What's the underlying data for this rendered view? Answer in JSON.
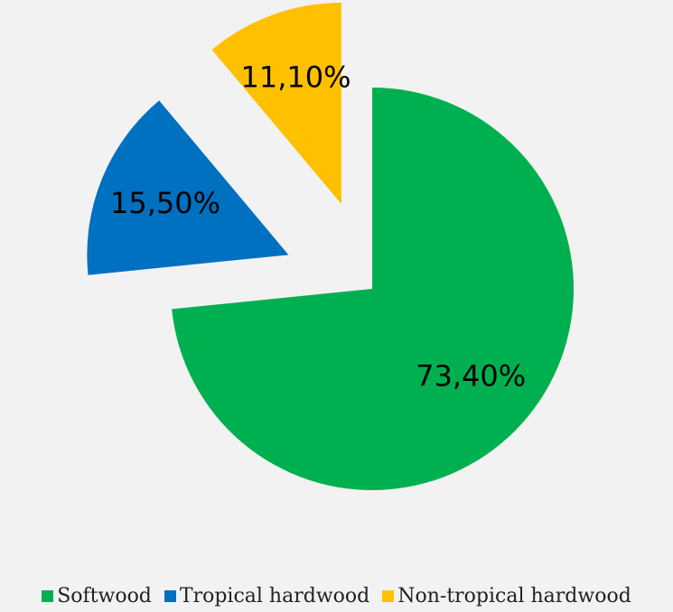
{
  "chart_data": {
    "type": "pie",
    "title": "",
    "legend_position": "bottom",
    "slices": [
      {
        "label": "Softwood",
        "value": 73.4,
        "display": "73,40%",
        "color": "#00b050",
        "exploded": false
      },
      {
        "label": "Tropical hardwood",
        "value": 15.5,
        "display": "15,50%",
        "color": "#0070c0",
        "exploded": true
      },
      {
        "label": "Non-tropical hardwood",
        "value": 11.1,
        "display": "11,10%",
        "color": "#ffc000",
        "exploded": true
      }
    ]
  }
}
